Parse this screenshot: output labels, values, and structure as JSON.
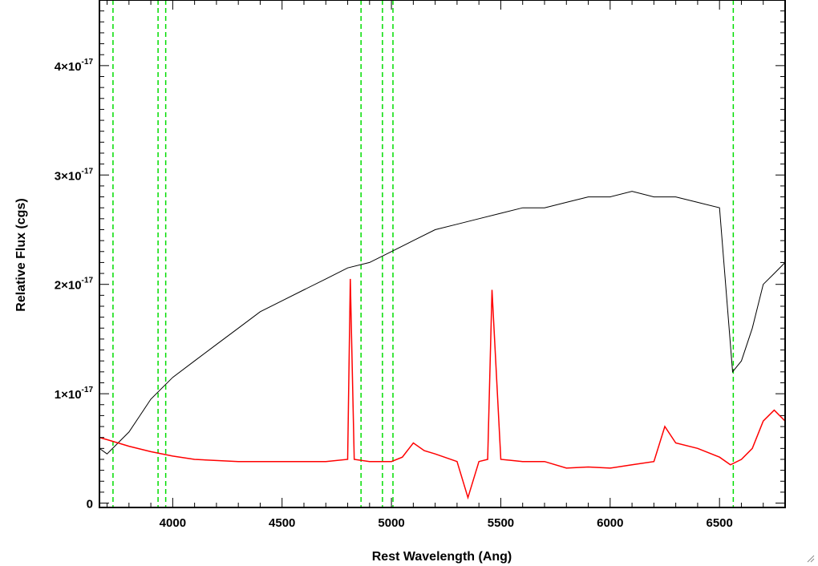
{
  "chart_data": {
    "type": "line",
    "xlabel": "Rest Wavelength (Ang)",
    "ylabel": "Relative Flux (cgs)",
    "xlim": [
      3665,
      6800
    ],
    "ylim": [
      -4e-19,
      4.6e-17
    ],
    "x_ticks": [
      {
        "value": 4000,
        "label": "4000"
      },
      {
        "value": 4500,
        "label": "4500"
      },
      {
        "value": 5000,
        "label": "5000"
      },
      {
        "value": 5500,
        "label": "5500"
      },
      {
        "value": 6000,
        "label": "6000"
      },
      {
        "value": 6500,
        "label": "6500"
      }
    ],
    "y_ticks": [
      {
        "value": 0,
        "mant": "0",
        "exp": ""
      },
      {
        "value": 1e-17,
        "mant": "1×10",
        "exp": "-17"
      },
      {
        "value": 2e-17,
        "mant": "2×10",
        "exp": "-17"
      },
      {
        "value": 3e-17,
        "mant": "3×10",
        "exp": "-17"
      },
      {
        "value": 4e-17,
        "mant": "4×10",
        "exp": "-17"
      }
    ],
    "grid": false,
    "series": [
      {
        "color": "#000000",
        "x": [
          3665,
          3700,
          3750,
          3800,
          3850,
          3900,
          3950,
          4000,
          4100,
          4200,
          4300,
          4400,
          4500,
          4600,
          4700,
          4800,
          4900,
          5000,
          5100,
          5200,
          5300,
          5400,
          5500,
          5600,
          5700,
          5800,
          5900,
          6000,
          6100,
          6200,
          6300,
          6400,
          6500,
          6560,
          6600,
          6650,
          6700,
          6750,
          6800
        ],
        "y": [
          5e-18,
          4.5e-18,
          5.5e-18,
          6.5e-18,
          8e-18,
          9.5e-18,
          1.05e-17,
          1.15e-17,
          1.3e-17,
          1.45e-17,
          1.6e-17,
          1.75e-17,
          1.85e-17,
          1.95e-17,
          2.05e-17,
          2.15e-17,
          2.2e-17,
          2.3e-17,
          2.4e-17,
          2.5e-17,
          2.55e-17,
          2.6e-17,
          2.65e-17,
          2.7e-17,
          2.7e-17,
          2.75e-17,
          2.8e-17,
          2.8e-17,
          2.85e-17,
          2.8e-17,
          2.8e-17,
          2.75e-17,
          2.7e-17,
          1.2e-17,
          1.3e-17,
          1.6e-17,
          2e-17,
          2.1e-17,
          2.2e-17
        ]
      },
      {
        "color": "#ff0000",
        "x": [
          3665,
          3700,
          3750,
          3800,
          3900,
          4000,
          4100,
          4300,
          4500,
          4700,
          4800,
          4812,
          4830,
          4900,
          5000,
          5050,
          5100,
          5150,
          5200,
          5300,
          5350,
          5400,
          5440,
          5460,
          5500,
          5600,
          5700,
          5800,
          5900,
          6000,
          6100,
          6200,
          6250,
          6300,
          6400,
          6500,
          6550,
          6600,
          6650,
          6700,
          6750,
          6800
        ],
        "y": [
          6e-18,
          5.8e-18,
          5.5e-18,
          5.2e-18,
          4.7e-18,
          4.3e-18,
          4e-18,
          3.8e-18,
          3.8e-18,
          3.8e-18,
          4e-18,
          2.05e-17,
          4e-18,
          3.8e-18,
          3.8e-18,
          4.2e-18,
          5.5e-18,
          4.8e-18,
          4.5e-18,
          3.8e-18,
          5e-19,
          3.8e-18,
          4e-18,
          1.95e-17,
          4e-18,
          3.8e-18,
          3.8e-18,
          3.2e-18,
          3.3e-18,
          3.2e-18,
          3.5e-18,
          3.8e-18,
          7e-18,
          5.5e-18,
          5e-18,
          4.2e-18,
          3.5e-18,
          4e-18,
          5e-18,
          7.5e-18,
          8.5e-18,
          7.5e-18
        ]
      }
    ],
    "vertical_lines": [
      {
        "x": 3727,
        "color": "#00dd00",
        "style": "dashed"
      },
      {
        "x": 3933,
        "color": "#00dd00",
        "style": "dashed"
      },
      {
        "x": 3968,
        "color": "#00dd00",
        "style": "dashed"
      },
      {
        "x": 4861,
        "color": "#00dd00",
        "style": "dashed"
      },
      {
        "x": 4959,
        "color": "#00dd00",
        "style": "dashed"
      },
      {
        "x": 5007,
        "color": "#00dd00",
        "style": "dashed"
      },
      {
        "x": 6563,
        "color": "#00dd00",
        "style": "dashed"
      }
    ]
  }
}
